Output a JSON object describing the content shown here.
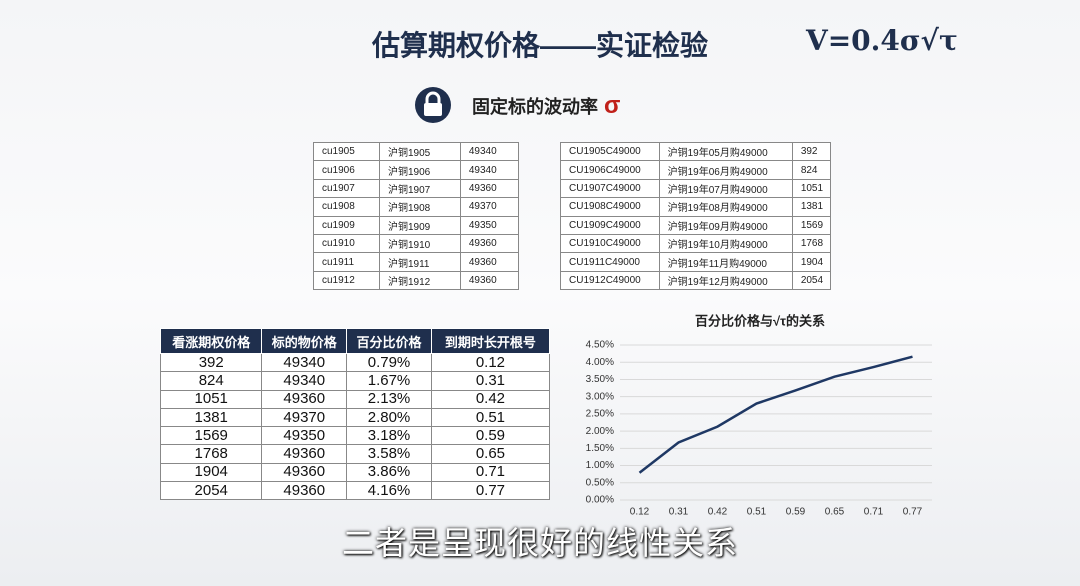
{
  "header": {
    "title": "估算期权价格——实证检验",
    "formula": "V=0.4σ√τ"
  },
  "subtitle": {
    "text": "固定标的波动率",
    "symbol": "σ"
  },
  "table_futures": {
    "rows": [
      [
        "cu1905",
        "沪铜1905",
        "49340"
      ],
      [
        "cu1906",
        "沪铜1906",
        "49340"
      ],
      [
        "cu1907",
        "沪铜1907",
        "49360"
      ],
      [
        "cu1908",
        "沪铜1908",
        "49370"
      ],
      [
        "cu1909",
        "沪铜1909",
        "49350"
      ],
      [
        "cu1910",
        "沪铜1910",
        "49360"
      ],
      [
        "cu1911",
        "沪铜1911",
        "49360"
      ],
      [
        "cu1912",
        "沪铜1912",
        "49360"
      ]
    ]
  },
  "table_options": {
    "rows": [
      [
        "CU1905C49000",
        "沪铜19年05月购49000",
        "392"
      ],
      [
        "CU1906C49000",
        "沪铜19年06月购49000",
        "824"
      ],
      [
        "CU1907C49000",
        "沪铜19年07月购49000",
        "1051"
      ],
      [
        "CU1908C49000",
        "沪铜19年08月购49000",
        "1381"
      ],
      [
        "CU1909C49000",
        "沪铜19年09月购49000",
        "1569"
      ],
      [
        "CU1910C49000",
        "沪铜19年10月购49000",
        "1768"
      ],
      [
        "CU1911C49000",
        "沪铜19年11月购49000",
        "1904"
      ],
      [
        "CU1912C49000",
        "沪铜19年12月购49000",
        "2054"
      ]
    ]
  },
  "table_summary": {
    "header": [
      "看涨期权价格",
      "标的物价格",
      "百分比价格",
      "到期时长开根号"
    ],
    "rows": [
      [
        "392",
        "49340",
        "0.79%",
        "0.12"
      ],
      [
        "824",
        "49340",
        "1.67%",
        "0.31"
      ],
      [
        "1051",
        "49360",
        "2.13%",
        "0.42"
      ],
      [
        "1381",
        "49370",
        "2.80%",
        "0.51"
      ],
      [
        "1569",
        "49350",
        "3.18%",
        "0.59"
      ],
      [
        "1768",
        "49360",
        "3.58%",
        "0.65"
      ],
      [
        "1904",
        "49360",
        "3.86%",
        "0.71"
      ],
      [
        "2054",
        "49360",
        "4.16%",
        "0.77"
      ]
    ]
  },
  "chart_data": {
    "type": "line",
    "title": "百分比价格与√τ的关系",
    "categories": [
      "0.12",
      "0.31",
      "0.42",
      "0.51",
      "0.59",
      "0.65",
      "0.71",
      "0.77"
    ],
    "series": [
      {
        "name": "百分比价格",
        "color": "#1f3864",
        "values": [
          0.79,
          1.67,
          2.13,
          2.8,
          3.18,
          3.58,
          3.86,
          4.16
        ]
      }
    ],
    "ylim": [
      0,
      4.5
    ],
    "yticks": [
      {
        "value": 0,
        "label": "0.00%"
      },
      {
        "value": 0.5,
        "label": "0.50%"
      },
      {
        "value": 1,
        "label": "1.00%"
      },
      {
        "value": 1.5,
        "label": "1.50%"
      },
      {
        "value": 2,
        "label": "2.00%"
      },
      {
        "value": 2.5,
        "label": "2.50%"
      },
      {
        "value": 3,
        "label": "3.00%"
      },
      {
        "value": 3.5,
        "label": "3.50%"
      },
      {
        "value": 4,
        "label": "4.00%"
      },
      {
        "value": 4.5,
        "label": "4.50%"
      }
    ],
    "grid": true
  },
  "caption": "二者是呈现很好的线性关系"
}
